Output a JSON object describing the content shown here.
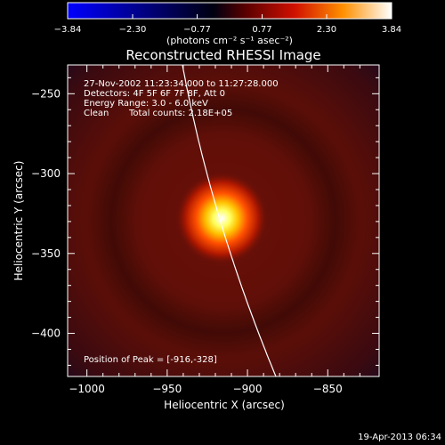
{
  "chart_data": {
    "type": "heatmap",
    "title": "Reconstructed RHESSI Image",
    "xlabel": "Heliocentric X (arcsec)",
    "ylabel": "Heliocentric Y (arcsec)",
    "xlim": [
      -1012,
      -818
    ],
    "ylim": [
      -427,
      -232
    ],
    "xticks": [
      -1000,
      -950,
      -900,
      -850
    ],
    "yticks": [
      -250,
      -300,
      -350,
      -400
    ],
    "colorbar": {
      "min": -3.84,
      "max": 3.84,
      "ticks": [
        "-3.84",
        "-2.30",
        "-0.77",
        "0.77",
        "2.30",
        "3.84"
      ],
      "tick_values": [
        -3.84,
        -2.3,
        -0.77,
        0.77,
        2.3,
        3.84
      ],
      "units_label": "(photons cm⁻² s⁻¹ asec⁻²)",
      "colormap": [
        "#0000ff",
        "#000000",
        "#8b0000",
        "#ff3000",
        "#ffc000",
        "#ffffff"
      ]
    },
    "annotations": [
      "27-Nov-2002 11:23:34.000 to 11:27:28.000",
      "Detectors: 4F 5F 6F 7F 8F, Att 0",
      "Energy Range: 3.0 - 6.0 keV",
      "Clean",
      "Total counts: 2.18E+05"
    ],
    "peak_label": "Position of Peak = [-916,-328]",
    "peak": [
      -916,
      -328
    ],
    "footer": "19-Apr-2013 06:34"
  }
}
